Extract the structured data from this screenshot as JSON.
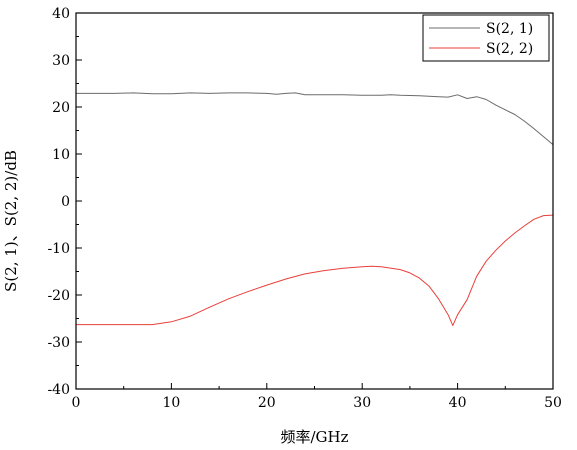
{
  "chart_data": {
    "type": "line",
    "title": "",
    "xlabel": "频率/GHz",
    "ylabel": "S(2, 1)、S(2, 2)/dB",
    "xlim": [
      0,
      50
    ],
    "ylim": [
      -40,
      40
    ],
    "x_ticks": [
      "0",
      "10",
      "20",
      "30",
      "40",
      "50"
    ],
    "y_ticks": [
      "-40",
      "-30",
      "-20",
      "-10",
      "0",
      "10",
      "20",
      "30",
      "40"
    ],
    "grid": false,
    "legend_position": "top-right",
    "series": [
      {
        "name": "S(2, 1)",
        "color": "#6b6b6b",
        "x": [
          0,
          2,
          4,
          6,
          8,
          10,
          12,
          14,
          16,
          18,
          20,
          21,
          22,
          23,
          24,
          26,
          28,
          30,
          32,
          33,
          34,
          36,
          38,
          39,
          40,
          41,
          42,
          43,
          44,
          45,
          46,
          47,
          48,
          49,
          50
        ],
        "y": [
          22.9,
          22.9,
          22.9,
          23.0,
          22.8,
          22.8,
          23.0,
          22.9,
          23.0,
          23.0,
          22.9,
          22.7,
          22.9,
          23.0,
          22.6,
          22.6,
          22.6,
          22.5,
          22.5,
          22.6,
          22.5,
          22.4,
          22.2,
          22.1,
          22.6,
          21.8,
          22.2,
          21.6,
          20.4,
          19.4,
          18.4,
          17.0,
          15.4,
          13.7,
          12.0
        ]
      },
      {
        "name": "S(2, 2)",
        "color": "#e8403a",
        "x": [
          0,
          2,
          4,
          6,
          8,
          10,
          12,
          14,
          16,
          18,
          20,
          22,
          24,
          26,
          28,
          30,
          31,
          32,
          34,
          35,
          36,
          37,
          38,
          39,
          39.5,
          40,
          41,
          42,
          43,
          44,
          45,
          46,
          47,
          48,
          49,
          50
        ],
        "y": [
          -26.3,
          -26.3,
          -26.3,
          -26.3,
          -26.3,
          -25.7,
          -24.5,
          -22.6,
          -20.8,
          -19.3,
          -17.9,
          -16.6,
          -15.5,
          -14.8,
          -14.3,
          -14.0,
          -13.9,
          -14.0,
          -14.6,
          -15.3,
          -16.4,
          -18.1,
          -20.8,
          -24.2,
          -26.5,
          -24.2,
          -21.0,
          -16.0,
          -12.8,
          -10.5,
          -8.5,
          -6.8,
          -5.3,
          -3.9,
          -3.1,
          -3.0
        ]
      }
    ]
  }
}
